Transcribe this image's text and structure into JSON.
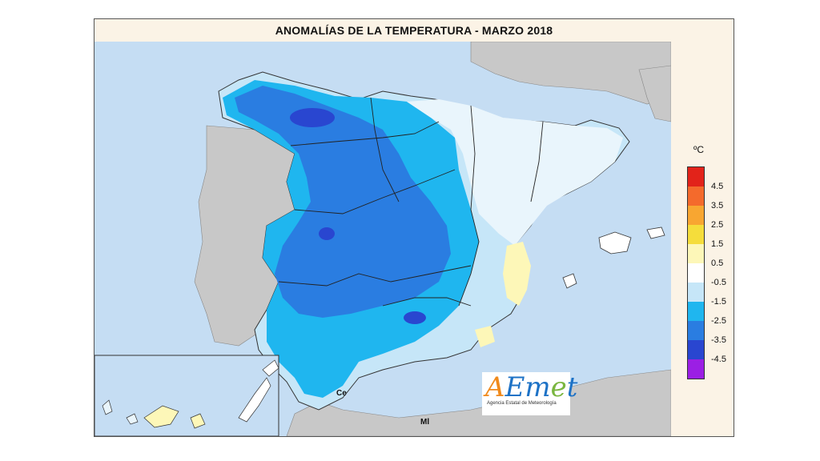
{
  "title": "ANOMALÍAS DE LA TEMPERATURA - MARZO 2018",
  "legend": {
    "unit": "ºC",
    "items": [
      {
        "label": "4.5",
        "color": "#e2231a"
      },
      {
        "label": "3.5",
        "color": "#f46a2c"
      },
      {
        "label": "2.5",
        "color": "#f8a631"
      },
      {
        "label": "1.5",
        "color": "#f5dd3b"
      },
      {
        "label": "0.5",
        "color": "#fdf7b8"
      },
      {
        "label": "-0.5",
        "color": "#ffffff"
      },
      {
        "label": "-1.5",
        "color": "#c6e6f8"
      },
      {
        "label": "-2.5",
        "color": "#1fb6ef"
      },
      {
        "label": "-3.5",
        "color": "#2a7de1"
      },
      {
        "label": "-4.5",
        "color": "#2946d0"
      },
      {
        "label": "",
        "color": "#9b1fe4"
      }
    ]
  },
  "places": {
    "ceuta": "Ce",
    "melilla": "Ml"
  },
  "logo": {
    "letters": [
      {
        "text": "A",
        "color": "#f08a1c"
      },
      {
        "text": "E",
        "color": "#1d72c6"
      },
      {
        "text": "m",
        "color": "#1d72c6"
      },
      {
        "text": "e",
        "color": "#7ab640"
      },
      {
        "text": "t",
        "color": "#1d72c6"
      }
    ],
    "subtitle": "Agencia Estatal de Meteorología"
  }
}
